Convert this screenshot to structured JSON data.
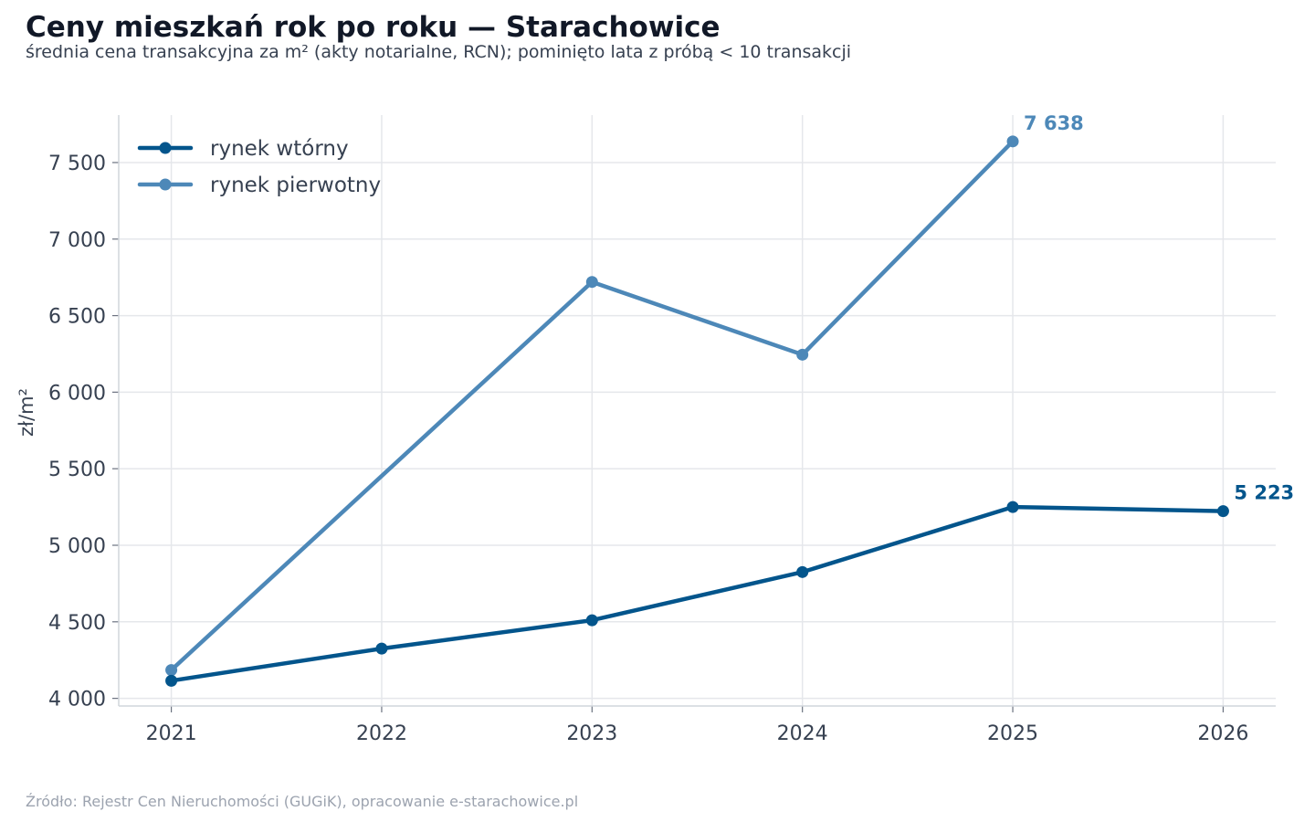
{
  "header": {
    "title": "Ceny mieszkań rok po roku — Starachowice",
    "subtitle": "średnia cena transakcyjna za m² (akty notarialne, RCN); pominięto lata z próbą < 10 transakcji"
  },
  "footer": {
    "source": "Źródło: Rejestr Cen Nieruchomości (GUGiK), opracowanie e-starachowice.pl"
  },
  "chart_data": {
    "type": "line",
    "title": "Ceny mieszkań rok po roku — Starachowice",
    "subtitle": "średnia cena transakcyjna za m² (akty notarialne, RCN); pominięto lata z próbą < 10 transakcji",
    "xlabel": "",
    "ylabel": "zł/m²",
    "x": [
      2021,
      2022,
      2023,
      2024,
      2025,
      2026
    ],
    "x_tick_labels": [
      "2021",
      "2022",
      "2023",
      "2024",
      "2025",
      "2026"
    ],
    "xlim": [
      2020.75,
      2026.25
    ],
    "ylim": [
      3950,
      7810
    ],
    "y_ticks": [
      4000,
      4500,
      5000,
      5500,
      6000,
      6500,
      7000,
      7500
    ],
    "y_tick_labels": [
      "4 000",
      "4 500",
      "5 000",
      "5 500",
      "6 000",
      "6 500",
      "7 000",
      "7 500"
    ],
    "grid": true,
    "legend_position": "top-left",
    "series": [
      {
        "name": "rynek wtórny",
        "color": "#03558c",
        "values": [
          4115,
          4325,
          4510,
          4825,
          5250,
          5223
        ],
        "end_label": "5 223"
      },
      {
        "name": "rynek pierwotny",
        "color": "#4d88b8",
        "values": [
          4185,
          null,
          6720,
          6245,
          7638,
          null
        ],
        "end_label": "7 638"
      }
    ]
  }
}
